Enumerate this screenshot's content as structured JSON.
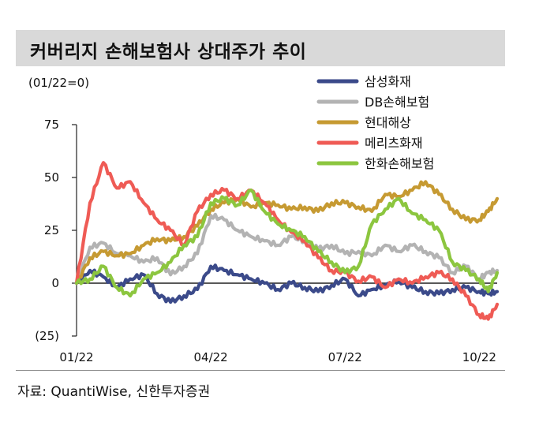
{
  "title": "커버리지 손해보험사 상대주가 추이",
  "source": "자료: QuantiWise, 신한투자증권",
  "chart_data": {
    "type": "line",
    "unit_label": "(01/22=0)",
    "y_ticks": [
      {
        "value": 75,
        "label": "75"
      },
      {
        "value": 50,
        "label": "50"
      },
      {
        "value": 25,
        "label": "25"
      },
      {
        "value": 0,
        "label": "0"
      },
      {
        "value": -25,
        "label": "(25)"
      }
    ],
    "x_ticks": [
      {
        "value": 0,
        "label": "01/22"
      },
      {
        "value": 3,
        "label": "04/22"
      },
      {
        "value": 6,
        "label": "07/22"
      },
      {
        "value": 9,
        "label": "10/22"
      }
    ],
    "xlim": [
      0,
      9.4
    ],
    "ylim": [
      -25,
      75
    ],
    "legend_position": "top-right",
    "series": [
      {
        "name": "삼성화재",
        "color": "#3b4a8a",
        "x": [
          0,
          0.3,
          0.6,
          0.9,
          1.2,
          1.5,
          1.8,
          2.1,
          2.4,
          2.7,
          3.0,
          3.3,
          3.6,
          3.9,
          4.2,
          4.5,
          4.8,
          5.1,
          5.4,
          5.7,
          6.0,
          6.3,
          6.6,
          6.9,
          7.2,
          7.5,
          7.8,
          8.1,
          8.4,
          8.7,
          9.0,
          9.2,
          9.4
        ],
        "y": [
          0,
          6,
          3,
          -2,
          2,
          4,
          -5,
          -9,
          -6,
          -3,
          8,
          6,
          4,
          2,
          0,
          -3,
          0,
          -2,
          -4,
          -1,
          2,
          -6,
          -3,
          -1,
          1,
          -2,
          -4,
          -5,
          -3,
          -2,
          -4,
          -5,
          -4
        ]
      },
      {
        "name": "DB손해보험",
        "color": "#b3b3b3",
        "x": [
          0,
          0.3,
          0.6,
          0.9,
          1.2,
          1.5,
          1.8,
          2.1,
          2.4,
          2.7,
          3.0,
          3.3,
          3.6,
          3.9,
          4.2,
          4.5,
          4.8,
          5.1,
          5.4,
          5.7,
          6.0,
          6.3,
          6.6,
          6.9,
          7.2,
          7.5,
          7.8,
          8.1,
          8.4,
          8.7,
          9.0,
          9.2,
          9.4
        ],
        "y": [
          0,
          17,
          19,
          14,
          13,
          10,
          12,
          4,
          8,
          14,
          32,
          30,
          25,
          22,
          20,
          18,
          22,
          20,
          16,
          18,
          14,
          15,
          13,
          18,
          15,
          18,
          15,
          12,
          5,
          8,
          2,
          5,
          6
        ]
      },
      {
        "name": "현대해상",
        "color": "#c69a32",
        "x": [
          0,
          0.3,
          0.6,
          0.9,
          1.2,
          1.5,
          1.8,
          2.1,
          2.4,
          2.7,
          3.0,
          3.3,
          3.6,
          3.9,
          4.2,
          4.5,
          4.8,
          5.1,
          5.4,
          5.7,
          6.0,
          6.3,
          6.6,
          6.9,
          7.2,
          7.5,
          7.8,
          8.1,
          8.4,
          8.7,
          9.0,
          9.2,
          9.4
        ],
        "y": [
          0,
          12,
          15,
          13,
          14,
          18,
          21,
          20,
          22,
          27,
          35,
          38,
          40,
          36,
          38,
          37,
          35,
          36,
          34,
          38,
          38,
          36,
          34,
          42,
          41,
          44,
          48,
          42,
          35,
          30,
          30,
          34,
          40
        ]
      },
      {
        "name": "메리츠화재",
        "color": "#ef5b55",
        "x": [
          0,
          0.3,
          0.6,
          0.9,
          1.2,
          1.5,
          1.8,
          2.1,
          2.4,
          2.7,
          3.0,
          3.3,
          3.6,
          3.9,
          4.2,
          4.5,
          4.8,
          5.1,
          5.4,
          5.7,
          6.0,
          6.3,
          6.6,
          6.9,
          7.2,
          7.5,
          7.8,
          8.1,
          8.4,
          8.7,
          9.0,
          9.2,
          9.4
        ],
        "y": [
          0,
          38,
          57,
          45,
          48,
          38,
          30,
          25,
          18,
          34,
          42,
          44,
          40,
          44,
          38,
          30,
          24,
          20,
          12,
          6,
          5,
          1,
          3,
          -2,
          2,
          0,
          3,
          5,
          2,
          -6,
          -15,
          -17,
          -10
        ]
      },
      {
        "name": "한화손해보험",
        "color": "#8cc63f",
        "x": [
          0,
          0.3,
          0.6,
          0.9,
          1.2,
          1.5,
          1.8,
          2.1,
          2.4,
          2.7,
          3.0,
          3.3,
          3.6,
          3.9,
          4.2,
          4.5,
          4.8,
          5.1,
          5.4,
          5.7,
          6.0,
          6.3,
          6.6,
          6.9,
          7.2,
          7.5,
          7.8,
          8.1,
          8.4,
          8.7,
          9.0,
          9.2,
          9.4
        ],
        "y": [
          0,
          2,
          8,
          -2,
          -6,
          2,
          5,
          10,
          18,
          22,
          38,
          40,
          37,
          44,
          34,
          28,
          25,
          22,
          15,
          10,
          5,
          8,
          28,
          35,
          40,
          33,
          30,
          25,
          10,
          6,
          2,
          -4,
          5
        ]
      }
    ]
  }
}
